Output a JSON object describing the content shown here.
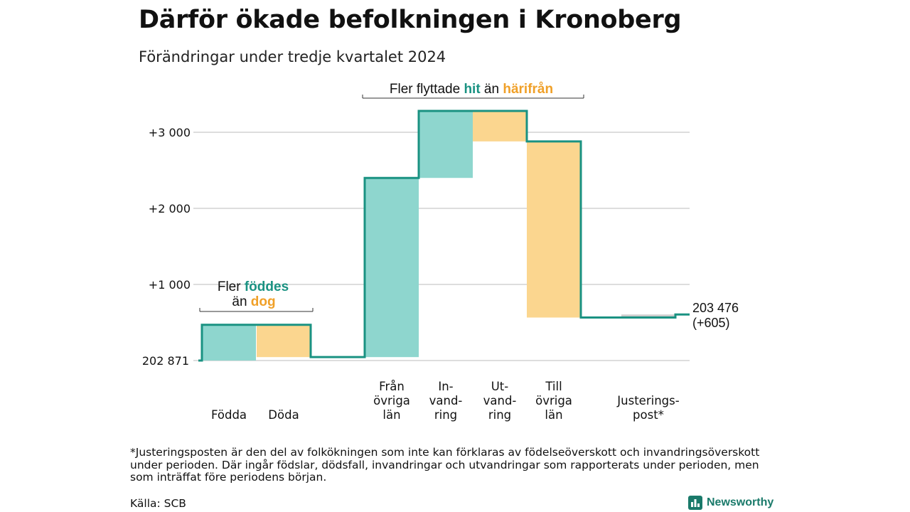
{
  "title": "Därför ökade befolkningen i Kronoberg",
  "subtitle": "Förändringar under tredje kvartalet 2024",
  "colors": {
    "increase": "#8ed6ce",
    "decrease": "#fbd68f",
    "line": "#1a9282",
    "hit": "#1a9282",
    "harifran": "#f0a028",
    "grid": "#dddddd"
  },
  "chart_data": {
    "type": "waterfall",
    "baseline_label": "202 871",
    "baseline_value": 202871,
    "yticks": [
      {
        "label": "+3 000",
        "value": 3000
      },
      {
        "label": "+2 000",
        "value": 2000
      },
      {
        "label": "+1 000",
        "value": 1000
      }
    ],
    "ylim": [
      0,
      3300
    ],
    "bars": [
      {
        "name": "Födda",
        "label_lines": [
          "Födda"
        ],
        "from": 0,
        "to": 470,
        "kind": "increase"
      },
      {
        "name": "Döda",
        "label_lines": [
          "Döda"
        ],
        "from": 470,
        "to": 45,
        "kind": "decrease"
      },
      {
        "name": "Från övriga län",
        "label_lines": [
          "Från",
          "övriga",
          "län"
        ],
        "from": 45,
        "to": 2400,
        "kind": "increase"
      },
      {
        "name": "Invandring",
        "label_lines": [
          "In-",
          "vand-",
          "ring"
        ],
        "from": 2400,
        "to": 3280,
        "kind": "increase"
      },
      {
        "name": "Utvandring",
        "label_lines": [
          "Ut-",
          "vand-",
          "ring"
        ],
        "from": 3280,
        "to": 2880,
        "kind": "decrease"
      },
      {
        "name": "Till övriga län",
        "label_lines": [
          "Till",
          "övriga",
          "län"
        ],
        "from": 2880,
        "to": 565,
        "kind": "decrease"
      },
      {
        "name": "Justeringspost*",
        "label_lines": [
          "Justerings-",
          "post*"
        ],
        "from": 565,
        "to": 605,
        "kind": "adjust"
      }
    ],
    "end_label_lines": [
      "203 476",
      "(+605)"
    ],
    "end_value": 605,
    "annotations": {
      "births": {
        "pre": "Fler ",
        "hl1": "föddes",
        "line2_pre": "än ",
        "hl2": "dog"
      },
      "migration": {
        "pre": "Fler flyttade ",
        "hl1": "hit",
        "mid": " än ",
        "hl2": "härifrån"
      }
    }
  },
  "footnote": "*Justeringsposten är den del av folkökningen som inte kan förklaras av födelseöverskott och invandringsöverskott under perioden. Där ingår födslar, dödsfall, invandringar och utvandringar som rapporterats under perioden, men som inträffat före periodens början.",
  "source": "Källa: SCB",
  "brand": {
    "name": "Newsworthy",
    "icon": "bar-chart-logo-icon"
  }
}
